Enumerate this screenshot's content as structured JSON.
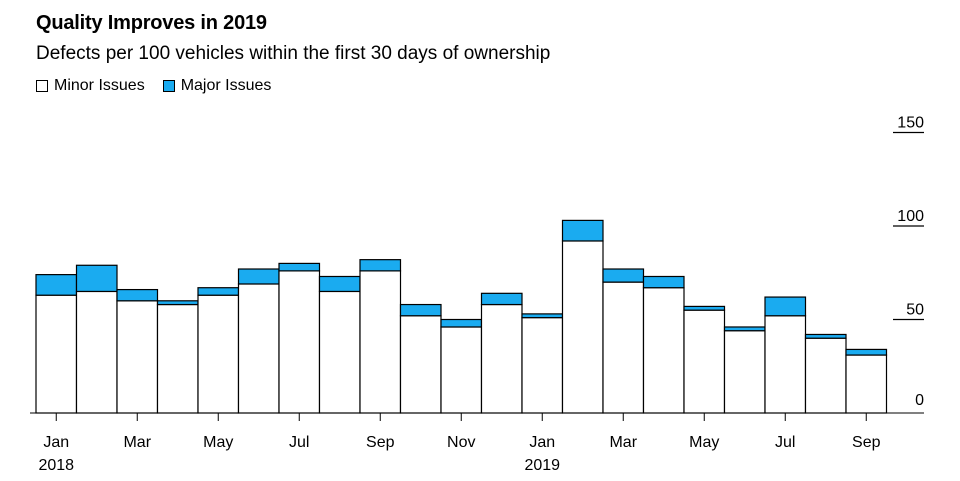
{
  "chart_data": {
    "type": "bar",
    "stacked": true,
    "title": "Quality Improves in 2019",
    "subtitle": "Defects per 100 vehicles within the first 30 days of ownership",
    "legend_position": "top-left",
    "series": [
      {
        "name": "Minor Issues",
        "color": "#ffffff",
        "values": [
          63,
          65,
          60,
          58,
          63,
          69,
          76,
          65,
          76,
          52,
          46,
          58,
          51,
          92,
          70,
          67,
          55,
          44,
          52,
          40,
          31
        ]
      },
      {
        "name": "Major Issues",
        "color": "#1aabf0",
        "values": [
          11,
          14,
          6,
          2,
          4,
          8,
          4,
          8,
          6,
          6,
          4,
          6,
          2,
          11,
          7,
          6,
          2,
          2,
          10,
          2,
          3
        ]
      }
    ],
    "categories": [
      "Jan 2018",
      "Feb 2018",
      "Mar 2018",
      "Apr 2018",
      "May 2018",
      "Jun 2018",
      "Jul 2018",
      "Aug 2018",
      "Sep 2018",
      "Oct 2018",
      "Nov 2018",
      "Dec 2018",
      "Jan 2019",
      "Feb 2019",
      "Mar 2019",
      "Apr 2019",
      "May 2019",
      "Jun 2019",
      "Jul 2019",
      "Aug 2019",
      "Sep 2019"
    ],
    "x_ticks": [
      {
        "index": 0,
        "label": "Jan",
        "sublabel": "2018"
      },
      {
        "index": 2,
        "label": "Mar",
        "sublabel": ""
      },
      {
        "index": 4,
        "label": "May",
        "sublabel": ""
      },
      {
        "index": 6,
        "label": "Jul",
        "sublabel": ""
      },
      {
        "index": 8,
        "label": "Sep",
        "sublabel": ""
      },
      {
        "index": 10,
        "label": "Nov",
        "sublabel": ""
      },
      {
        "index": 12,
        "label": "Jan",
        "sublabel": "2019"
      },
      {
        "index": 14,
        "label": "Mar",
        "sublabel": ""
      },
      {
        "index": 16,
        "label": "May",
        "sublabel": ""
      },
      {
        "index": 18,
        "label": "Jul",
        "sublabel": ""
      },
      {
        "index": 20,
        "label": "Sep",
        "sublabel": ""
      }
    ],
    "y_ticks": [
      0,
      50,
      100,
      150
    ],
    "y_tick_labels": [
      "0",
      "50",
      "100",
      "150"
    ],
    "ylim": [
      0,
      160
    ],
    "grid": false,
    "xlabel": "",
    "ylabel": ""
  }
}
